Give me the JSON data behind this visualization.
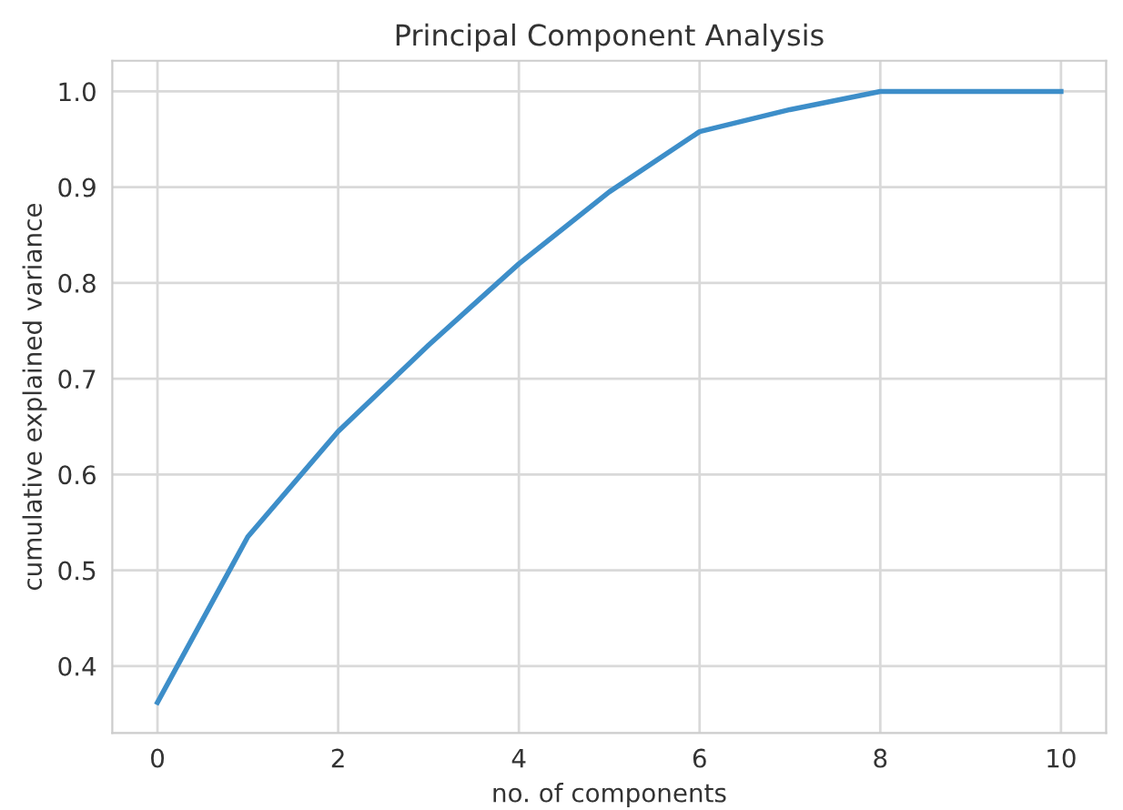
{
  "chart_data": {
    "type": "line",
    "title": "Principal Component Analysis",
    "xlabel": "no. of components",
    "ylabel": "cumulative explained variance",
    "x": [
      0,
      1,
      2,
      3,
      4,
      5,
      6,
      7,
      8,
      9,
      10
    ],
    "series": [
      {
        "color": "#3d8ec9",
        "values": [
          0.362,
          0.535,
          0.645,
          0.735,
          0.82,
          0.895,
          0.958,
          0.981,
          1.0,
          1.0,
          1.0
        ]
      }
    ],
    "xlim": [
      -0.5,
      10.5
    ],
    "ylim": [
      0.33,
      1.032
    ],
    "xticks": [
      0,
      2,
      4,
      6,
      8,
      10
    ],
    "yticks": [
      0.4,
      0.5,
      0.6,
      0.7,
      0.8,
      0.9,
      {
        "value": 1,
        "label": "1.0"
      }
    ],
    "grid": true,
    "line_style": "solid"
  }
}
